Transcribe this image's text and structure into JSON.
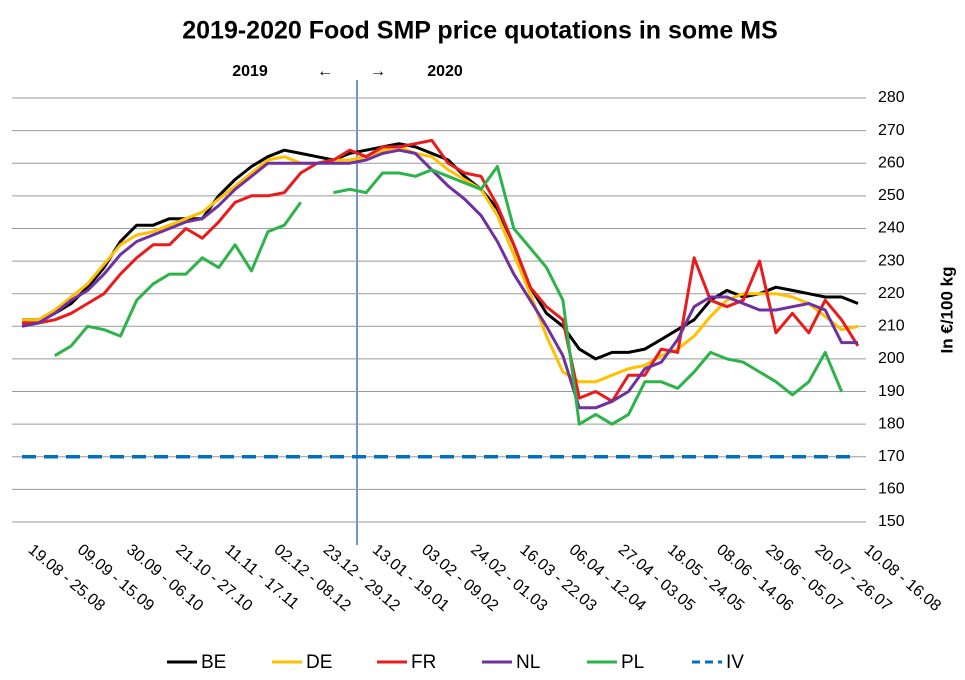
{
  "chart_data": {
    "type": "line",
    "title": "2019-2020 Food SMP price quotations in some MS",
    "y_label": "In €/100 kg",
    "annotations": [
      "2019",
      "←",
      "→",
      "2020"
    ],
    "categories": [
      "19.08 - 25.08",
      null,
      null,
      "09.09 - 15.09",
      null,
      null,
      "30.09 - 06.10",
      null,
      null,
      "21.10 - 27.10",
      null,
      null,
      "11.11 - 17.11",
      null,
      null,
      "02.12 - 08.12",
      null,
      null,
      "23.12 - 29.12",
      null,
      null,
      "13.01 - 19.01",
      null,
      null,
      "03.02 - 09.02",
      null,
      null,
      "24.02 - 01.03",
      null,
      null,
      "16.03 - 22.03",
      null,
      null,
      "06.04 - 12.04",
      null,
      null,
      "27.04 - 03.05",
      null,
      null,
      "18.05 - 24.05",
      null,
      null,
      "08.06 - 14.06",
      null,
      null,
      "29.06 - 05.07",
      null,
      null,
      "20.07 - 26.07",
      null,
      null,
      "10.08 - 16.08"
    ],
    "ylim": [
      150,
      280
    ],
    "yticks": [
      150,
      160,
      170,
      180,
      190,
      200,
      210,
      220,
      230,
      240,
      250,
      260,
      270,
      280
    ],
    "grid": true,
    "y_axis_side": "right",
    "legend": "bottom",
    "series": [
      {
        "name": "BE",
        "color": "#000000",
        "values": [
          212,
          212,
          214,
          217,
          222,
          228,
          236,
          241,
          241,
          243,
          243,
          243,
          250,
          255,
          259,
          262,
          264,
          263,
          262,
          261,
          263,
          264,
          265,
          266,
          265,
          263,
          261,
          256,
          252,
          246,
          235,
          222,
          214,
          210,
          203,
          200,
          202,
          202,
          203,
          206,
          209,
          212,
          218,
          221,
          219,
          220,
          222,
          221,
          220,
          219,
          219,
          217
        ]
      },
      {
        "name": "DE",
        "color": "#ffc000",
        "values": [
          212,
          212,
          215,
          219,
          223,
          229,
          235,
          238,
          239,
          241,
          243,
          245,
          249,
          253,
          257,
          261,
          262,
          260,
          260,
          261,
          261,
          262,
          264,
          265,
          263,
          262,
          258,
          255,
          252,
          244,
          232,
          220,
          207,
          196,
          193,
          193,
          195,
          197,
          198,
          201,
          203,
          207,
          213,
          218,
          220,
          220,
          220,
          219,
          217,
          213,
          209,
          210
        ]
      },
      {
        "name": "FR",
        "color": "#e81c1c",
        "values": [
          211,
          211,
          212,
          214,
          217,
          220,
          226,
          231,
          235,
          235,
          240,
          237,
          242,
          248,
          250,
          250,
          251,
          257,
          260,
          261,
          264,
          262,
          265,
          265,
          266,
          267,
          260,
          257,
          256,
          247,
          235,
          222,
          216,
          212,
          188,
          190,
          187,
          195,
          195,
          203,
          202,
          231,
          218,
          216,
          218,
          230,
          208,
          214,
          208,
          218,
          212,
          204
        ]
      },
      {
        "name": "NL",
        "color": "#7030a0",
        "values": [
          210,
          211,
          214,
          218,
          221,
          226,
          232,
          236,
          238,
          240,
          242,
          243,
          247,
          252,
          256,
          260,
          260,
          260,
          260,
          260,
          260,
          261,
          263,
          264,
          263,
          258,
          253,
          249,
          244,
          236,
          226,
          218,
          210,
          201,
          185,
          185,
          187,
          190,
          197,
          199,
          206,
          216,
          219,
          219,
          217,
          215,
          215,
          216,
          217,
          215,
          205,
          205
        ]
      },
      {
        "name": "PL",
        "color": "#2db34a",
        "values": [
          null,
          null,
          201,
          204,
          210,
          209,
          207,
          218,
          223,
          226,
          226,
          231,
          228,
          235,
          227,
          239,
          241,
          248,
          null,
          251,
          252,
          251,
          257,
          257,
          256,
          258,
          256,
          254,
          252,
          259,
          240,
          234,
          228,
          218,
          180,
          183,
          180,
          183,
          193,
          193,
          191,
          196,
          202,
          200,
          199,
          196,
          193,
          189,
          193,
          202,
          190,
          null
        ]
      },
      {
        "name": "IV",
        "color": "#0070c0",
        "dashed": true,
        "values": [
          170,
          170,
          170,
          170,
          170,
          170,
          170,
          170,
          170,
          170,
          170,
          170,
          170,
          170,
          170,
          170,
          170,
          170,
          170,
          170,
          170,
          170,
          170,
          170,
          170,
          170,
          170,
          170,
          170,
          170,
          170,
          170,
          170,
          170,
          170,
          170,
          170,
          170,
          170,
          170,
          170,
          170,
          170,
          170,
          170,
          170,
          170,
          170,
          170,
          170,
          170,
          170
        ]
      }
    ]
  }
}
